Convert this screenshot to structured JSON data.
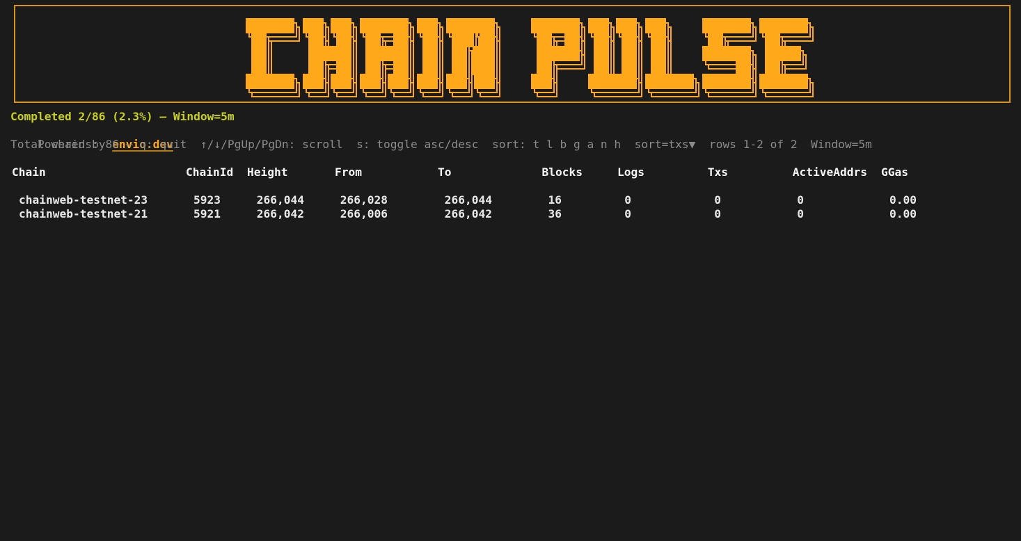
{
  "app": {
    "title_ascii": "CHAIN PULSE"
  },
  "status_line": "Completed 2/86 (2.3%) — Window=5m",
  "powered": {
    "prefix": "Powered by ",
    "link_label": "envio.dev"
  },
  "hints": {
    "separator": "  ",
    "parts": [
      "Total chains: 86 — q: quit",
      "↑/↓/PgUp/PgDn: scroll",
      "s: toggle asc/desc",
      "sort: t l b g a n h",
      "sort=txs▼",
      "rows 1-2 of 2",
      "Window=5m"
    ]
  },
  "table": {
    "headers": [
      "Chain",
      "ChainId",
      "Height",
      "From",
      "To",
      "Blocks",
      "Logs",
      "Txs",
      "ActiveAddrs",
      "GGas"
    ],
    "rows": [
      [
        "chainweb-testnet-23",
        "5923",
        "266,044",
        "266,028",
        "266,044",
        "16",
        "0",
        "0",
        "0",
        "0.00"
      ],
      [
        "chainweb-testnet-21",
        "5921",
        "266,042",
        "266,006",
        "266,042",
        "36",
        "0",
        "0",
        "0",
        "0.00"
      ]
    ]
  },
  "colors": {
    "background": "#1b1b1c",
    "accent_orange": "#ffa81a",
    "banner_border": "#d89214",
    "yellow": "#c8d01e",
    "gray": "#8b8b8b",
    "row_white": "#e9e9e9",
    "header_white": "#f5f5f5"
  }
}
